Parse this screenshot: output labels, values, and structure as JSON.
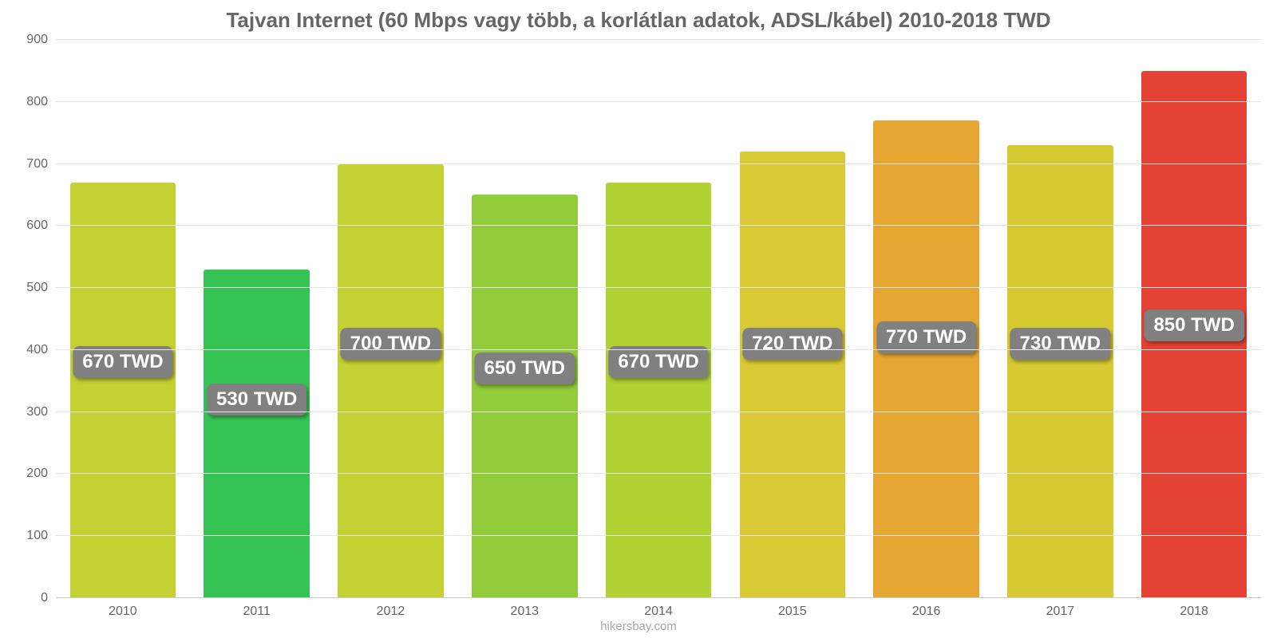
{
  "chart": {
    "type": "bar",
    "title": "Tajvan Internet (60 Mbps vagy több, a korlátlan adatok, ADSL/kábel) 2010-2018 TWD",
    "title_fontsize": 26,
    "title_color": "#666666",
    "background_color": "#ffffff",
    "grid_color": "#e6e6e6",
    "axis_label_color": "#666666",
    "axis_label_fontsize": 16,
    "ylim": [
      0,
      900
    ],
    "ytick_step": 100,
    "yticks": [
      0,
      100,
      200,
      300,
      400,
      500,
      600,
      700,
      800,
      900
    ],
    "categories": [
      "2010",
      "2011",
      "2012",
      "2013",
      "2014",
      "2015",
      "2016",
      "2017",
      "2018"
    ],
    "values": [
      670,
      530,
      700,
      650,
      670,
      720,
      770,
      730,
      850
    ],
    "value_labels": [
      "670 TWD",
      "530 TWD",
      "700 TWD",
      "650 TWD",
      "670 TWD",
      "720 TWD",
      "770 TWD",
      "730 TWD",
      "850 TWD"
    ],
    "badge_y_values": [
      380,
      320,
      410,
      370,
      380,
      410,
      420,
      410,
      440
    ],
    "bar_colors": [
      "#c4d133",
      "#35c354",
      "#c4d133",
      "#92cc3b",
      "#b2d133",
      "#d9c934",
      "#e6a732",
      "#d6c932",
      "#e34234"
    ],
    "bar_width_pct": 79,
    "badge_bg": "#808080",
    "badge_text_color": "#ffffff",
    "badge_fontsize": 24,
    "attribution": "hikersbay.com",
    "attribution_color": "#a8a8a8"
  }
}
